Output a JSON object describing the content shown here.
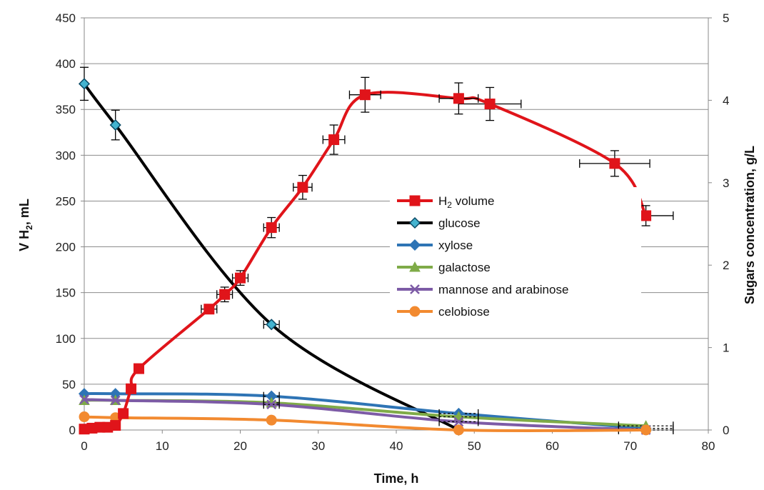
{
  "chart_data": {
    "type": "line",
    "title": "",
    "xlabel": "Time, h",
    "ylabel_left": "V H",
    "ylabel_left_sub": "2",
    "ylabel_left_unit": ", mL",
    "ylabel_right": "Sugars concentration, g/L",
    "xlim": [
      0,
      80
    ],
    "ylim_left": [
      0,
      450
    ],
    "ylim_right": [
      0,
      5
    ],
    "x_ticks": [
      "0",
      "10",
      "20",
      "30",
      "40",
      "50",
      "60",
      "70",
      "80"
    ],
    "y_left_ticks": [
      "0",
      "50",
      "100",
      "150",
      "200",
      "250",
      "300",
      "350",
      "400",
      "450"
    ],
    "y_right_ticks": [
      "0",
      "1",
      "2",
      "3",
      "4",
      "5"
    ],
    "grid": "horizontal",
    "legend_position": "center-right",
    "series": [
      {
        "name": "H₂ volume",
        "axis": "left",
        "color": "#e0141a",
        "marker": "square",
        "points": [
          [
            0,
            1
          ],
          [
            1,
            2
          ],
          [
            2,
            3
          ],
          [
            3,
            3
          ],
          [
            4,
            5
          ],
          [
            5,
            18
          ],
          [
            6,
            45
          ],
          [
            7,
            67
          ],
          [
            16,
            132
          ],
          [
            18,
            148
          ],
          [
            20,
            166
          ],
          [
            24,
            221
          ],
          [
            28,
            265
          ],
          [
            32,
            317
          ],
          [
            36,
            366
          ],
          [
            48,
            362
          ],
          [
            52,
            356
          ],
          [
            68,
            291
          ],
          [
            72,
            234
          ]
        ],
        "y_err": [
          0,
          0,
          0,
          0,
          0,
          0,
          0,
          0,
          0,
          8,
          8,
          11,
          13,
          16,
          19,
          17,
          18,
          14,
          11
        ],
        "x_err": [
          0,
          0,
          0,
          0,
          0,
          0,
          0,
          0,
          1,
          1,
          1,
          1,
          1.2,
          1.4,
          2,
          2.5,
          4,
          4.5,
          3.5
        ]
      },
      {
        "name": "glucose",
        "axis": "right",
        "color": "#000000",
        "marker_color": "#44b4d0",
        "marker": "diamond",
        "points": [
          [
            0,
            4.2
          ],
          [
            4,
            3.7
          ],
          [
            24,
            1.28
          ],
          [
            48,
            0
          ]
        ],
        "y_err": [
          0.2,
          0.18,
          0,
          0
        ],
        "x_err": [
          0,
          0,
          1,
          0
        ]
      },
      {
        "name": "xylose",
        "axis": "right",
        "color": "#2e74b5",
        "marker": "diamond",
        "points": [
          [
            0,
            0.44
          ],
          [
            4,
            0.44
          ],
          [
            24,
            0.41
          ],
          [
            48,
            0.2
          ],
          [
            72,
            0.02
          ]
        ],
        "y_err": [
          0,
          0,
          0,
          0,
          0
        ],
        "x_err": [
          0,
          0,
          1,
          2.5,
          3.5
        ]
      },
      {
        "name": "galactose",
        "axis": "right",
        "color": "#7fab48",
        "marker": "triangle",
        "points": [
          [
            0,
            0.36
          ],
          [
            4,
            0.36
          ],
          [
            24,
            0.33
          ],
          [
            48,
            0.16
          ],
          [
            72,
            0.05
          ]
        ],
        "y_err": [
          0,
          0,
          0,
          0,
          0
        ],
        "x_err": [
          0,
          0,
          1,
          2.5,
          3.5
        ]
      },
      {
        "name": "mannose and arabinose",
        "axis": "right",
        "color": "#7d5ba6",
        "marker": "x",
        "points": [
          [
            0,
            0.37
          ],
          [
            4,
            0.36
          ],
          [
            24,
            0.31
          ],
          [
            48,
            0.1
          ],
          [
            72,
            0
          ]
        ],
        "y_err": [
          0,
          0,
          0,
          0,
          0
        ],
        "x_err": [
          0,
          0,
          1,
          2.5,
          3.5
        ]
      },
      {
        "name": "celobiose",
        "axis": "right",
        "color": "#f28a30",
        "marker": "circle",
        "points": [
          [
            0,
            0.16
          ],
          [
            4,
            0.15
          ],
          [
            24,
            0.12
          ],
          [
            48,
            0
          ],
          [
            72,
            0
          ]
        ],
        "y_err": [
          0,
          0,
          0,
          0,
          0
        ],
        "x_err": [
          0,
          0,
          0,
          0,
          0
        ]
      }
    ],
    "legend_entries": [
      {
        "main": "H",
        "sub": "2",
        "rest": " volume"
      },
      {
        "main": "glucose",
        "sub": "",
        "rest": ""
      },
      {
        "main": "xylose",
        "sub": "",
        "rest": ""
      },
      {
        "main": "galactose",
        "sub": "",
        "rest": ""
      },
      {
        "main": "mannose and arabinose",
        "sub": "",
        "rest": ""
      },
      {
        "main": "celobiose",
        "sub": "",
        "rest": ""
      }
    ]
  }
}
